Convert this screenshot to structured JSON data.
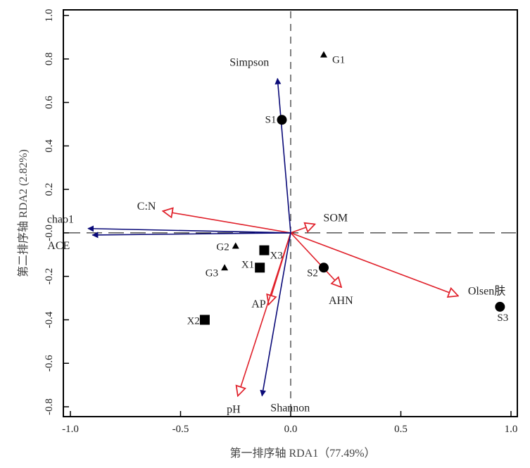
{
  "chart_data": {
    "type": "scatter",
    "subtype": "rda-biplot",
    "xlabel": "第一排序轴 RDA1（77.49%）",
    "ylabel": "第二排序轴 RDA2 (2.82%)",
    "xlim": [
      -1.0,
      1.0
    ],
    "ylim": [
      -0.8,
      1.0
    ],
    "x_ticks": [
      -1.0,
      -0.5,
      0.0,
      0.5,
      1.0
    ],
    "y_ticks": [
      -0.8,
      -0.6,
      -0.4,
      -0.2,
      0.0,
      0.2,
      0.4,
      0.6,
      0.8,
      1.0
    ],
    "x_tick_labels": [
      "-1.0",
      "-0.5",
      "0.0",
      "0.5",
      "1.0"
    ],
    "y_tick_labels": [
      "-0.8",
      "-0.6",
      "-0.4",
      "-0.2",
      "-0.0",
      "0.2",
      "0.4",
      "0.6",
      "0.8",
      "1.0"
    ],
    "reference_lines": "dashed lines at x = 0 and y = 0",
    "sample_series": [
      {
        "marker": "triangle",
        "color": "#000000",
        "points": [
          {
            "label": "G1",
            "x": 0.15,
            "y": 0.82
          },
          {
            "label": "G2",
            "x": -0.25,
            "y": -0.06
          },
          {
            "label": "G3",
            "x": -0.3,
            "y": -0.16
          }
        ]
      },
      {
        "marker": "circle",
        "color": "#000000",
        "points": [
          {
            "label": "S1",
            "x": -0.04,
            "y": 0.52
          },
          {
            "label": "S2",
            "x": 0.15,
            "y": -0.16
          },
          {
            "label": "S3",
            "x": 0.95,
            "y": -0.34
          }
        ]
      },
      {
        "marker": "square",
        "color": "#000000",
        "points": [
          {
            "label": "X1",
            "x": -0.14,
            "y": -0.16
          },
          {
            "label": "X2",
            "x": -0.39,
            "y": -0.4
          },
          {
            "label": "X3",
            "x": -0.12,
            "y": -0.08
          }
        ]
      }
    ],
    "response_vectors": {
      "color": "#0a0a78",
      "arrow_style": "filled",
      "items": [
        {
          "label": "Simpson",
          "x": -0.06,
          "y": 0.71
        },
        {
          "label": "chao1",
          "x": -0.92,
          "y": 0.02
        },
        {
          "label": "ACE",
          "x": -0.9,
          "y": -0.01
        },
        {
          "label": "Shannon",
          "x": -0.13,
          "y": -0.75
        }
      ]
    },
    "explanatory_vectors": {
      "color": "#e0202a",
      "arrow_style": "open",
      "items": [
        {
          "label": "C:N",
          "x": -0.58,
          "y": 0.1
        },
        {
          "label": "SOM",
          "x": 0.11,
          "y": 0.04
        },
        {
          "label": "AHN",
          "x": 0.23,
          "y": -0.25
        },
        {
          "label": "Olsen肤",
          "x": 0.76,
          "y": -0.29
        },
        {
          "label": "AP",
          "x": -0.1,
          "y": -0.33
        },
        {
          "label": "pH",
          "x": -0.24,
          "y": -0.75
        }
      ]
    }
  }
}
